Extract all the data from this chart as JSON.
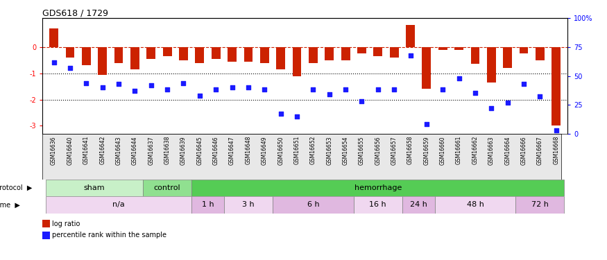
{
  "title": "GDS618 / 1729",
  "samples": [
    "GSM16636",
    "GSM16640",
    "GSM16641",
    "GSM16642",
    "GSM16643",
    "GSM16644",
    "GSM16637",
    "GSM16638",
    "GSM16639",
    "GSM16645",
    "GSM16646",
    "GSM16647",
    "GSM16648",
    "GSM16649",
    "GSM16650",
    "GSM16651",
    "GSM16652",
    "GSM16653",
    "GSM16654",
    "GSM16655",
    "GSM16656",
    "GSM16657",
    "GSM16658",
    "GSM16659",
    "GSM16660",
    "GSM16661",
    "GSM16662",
    "GSM16663",
    "GSM16664",
    "GSM16666",
    "GSM16667",
    "GSM16668"
  ],
  "log_ratio": [
    0.7,
    -0.4,
    -0.7,
    -1.05,
    -0.6,
    -0.85,
    -0.45,
    -0.35,
    -0.5,
    -0.6,
    -0.45,
    -0.55,
    -0.55,
    -0.6,
    -0.85,
    -1.1,
    -0.6,
    -0.5,
    -0.5,
    -0.25,
    -0.35,
    -0.4,
    0.85,
    -1.6,
    -0.1,
    -0.1,
    -0.65,
    -1.35,
    -0.8,
    -0.25,
    -0.5,
    -3.0
  ],
  "pct_rank": [
    62,
    57,
    44,
    40,
    43,
    37,
    42,
    38,
    44,
    33,
    38,
    40,
    40,
    38,
    17,
    15,
    38,
    34,
    38,
    28,
    38,
    38,
    68,
    8,
    38,
    48,
    35,
    22,
    27,
    43,
    32,
    3
  ],
  "protocol_groups": [
    {
      "label": "sham",
      "start": 0,
      "end": 5,
      "color": "#c8f0c8"
    },
    {
      "label": "control",
      "start": 6,
      "end": 8,
      "color": "#90e090"
    },
    {
      "label": "hemorrhage",
      "start": 9,
      "end": 31,
      "color": "#55cc55"
    }
  ],
  "time_groups": [
    {
      "label": "n/a",
      "start": 0,
      "end": 8,
      "color": "#f0d8f0"
    },
    {
      "label": "1 h",
      "start": 9,
      "end": 10,
      "color": "#e0b8e0"
    },
    {
      "label": "3 h",
      "start": 11,
      "end": 13,
      "color": "#f0d8f0"
    },
    {
      "label": "6 h",
      "start": 14,
      "end": 18,
      "color": "#e0b8e0"
    },
    {
      "label": "16 h",
      "start": 19,
      "end": 21,
      "color": "#f0d8f0"
    },
    {
      "label": "24 h",
      "start": 22,
      "end": 23,
      "color": "#e0b8e0"
    },
    {
      "label": "48 h",
      "start": 24,
      "end": 28,
      "color": "#f0d8f0"
    },
    {
      "label": "72 h",
      "start": 29,
      "end": 31,
      "color": "#e0b8e0"
    }
  ],
  "bar_color": "#cc2200",
  "dot_color": "#1a1aff",
  "ylim_left": [
    -3.3,
    1.1
  ],
  "ylim_right": [
    0,
    100
  ],
  "yticks_left": [
    0,
    -1,
    -2,
    -3
  ],
  "yticks_right": [
    0,
    25,
    50,
    75,
    100
  ],
  "dotted_lines": [
    -1.0,
    -2.0
  ]
}
